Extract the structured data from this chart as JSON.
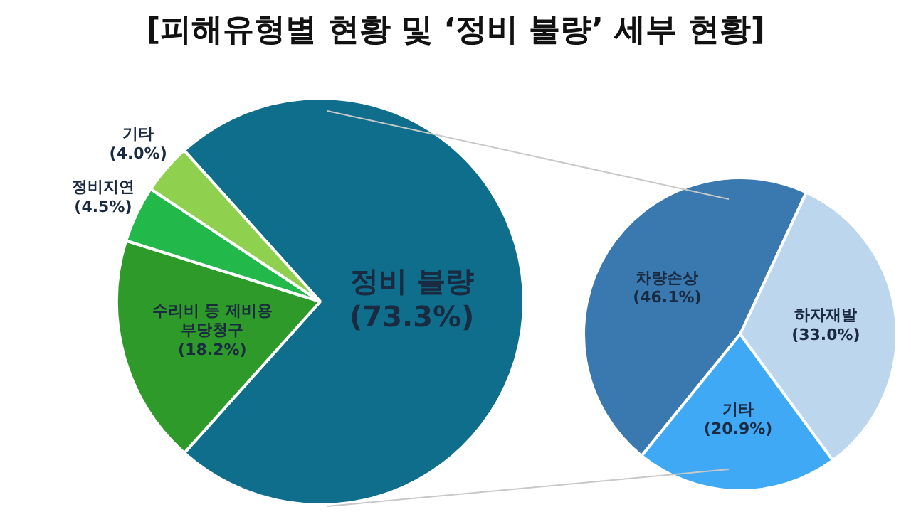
{
  "chart_data": [
    {
      "type": "pie",
      "title": "[피해유형별 현황 및 ‘정비 불량’ 세부 현황]",
      "categories": [
        "정비 불량",
        "수리비 등 제비용 부당청구",
        "정비지연",
        "기타"
      ],
      "values": [
        73.3,
        18.2,
        4.5,
        4.0
      ],
      "colors": [
        "#0f6e8c",
        "#2e9a2a",
        "#22b84a",
        "#8fd14f"
      ],
      "value_labels": [
        "(73.3%)",
        "(18.2%)",
        "(4.5%)",
        "(4.0%)"
      ],
      "legend": false
    },
    {
      "type": "pie",
      "categories": [
        "차량손상",
        "하자재발",
        "기타"
      ],
      "values": [
        46.1,
        33.0,
        20.9
      ],
      "colors": [
        "#3a78b0",
        "#bcd6ee",
        "#3fa9f5"
      ],
      "value_labels": [
        "(46.1%)",
        "(33.0%)",
        "(20.9%)"
      ],
      "legend": false
    }
  ]
}
